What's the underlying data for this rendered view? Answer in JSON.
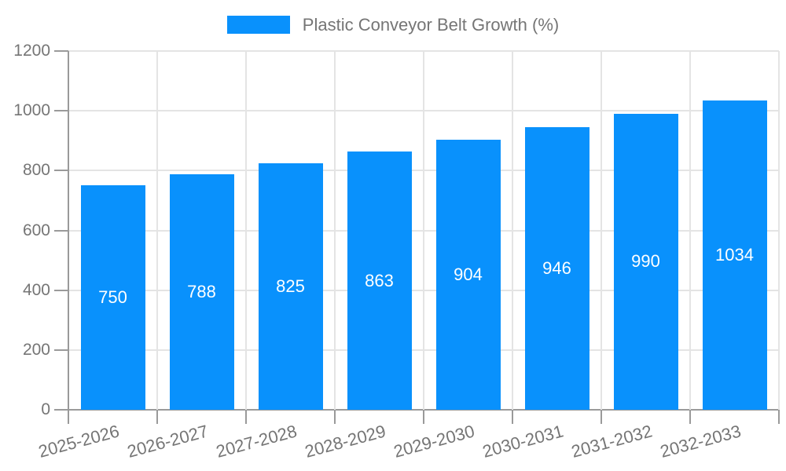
{
  "legend": {
    "label": "Plastic Conveyor Belt Growth (%)"
  },
  "chart_data": {
    "type": "bar",
    "title": "Plastic Conveyor Belt Growth (%)",
    "categories": [
      "2025-2026",
      "2026-2027",
      "2027-2028",
      "2028-2029",
      "2029-2030",
      "2030-2031",
      "2031-2032",
      "2032-2033"
    ],
    "values": [
      750,
      788,
      825,
      863,
      904,
      946,
      990,
      1034
    ],
    "xlabel": "",
    "ylabel": "",
    "ylim": [
      0,
      1200
    ],
    "yticks": [
      0,
      200,
      400,
      600,
      800,
      1000,
      1200
    ],
    "grid": true,
    "legend_position": "top",
    "value_labels": "centered-inside-bars",
    "colors": {
      "bar": "#0991FC",
      "value_text": "#FFFFFF",
      "axis_line": "#9A9A9A",
      "grid_line": "#E4E4E4",
      "tick_text": "#757575",
      "legend_text": "#757575",
      "background": "#FFFFFF"
    }
  }
}
